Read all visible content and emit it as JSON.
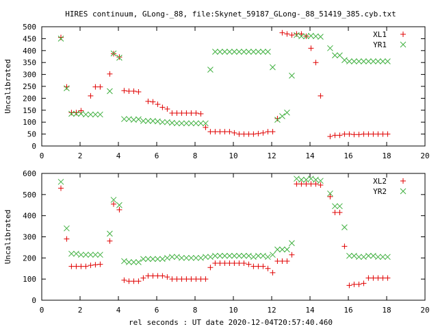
{
  "page": {
    "title": "HIRES continuum, GLong-_88, file:Skynet_59187_GLong-_88_51419_385.cyb.txt",
    "xlabel": "rel seconds : UT date 2020-12-04T20:57:40.460"
  },
  "colors": {
    "red": "#e00000",
    "green": "#40b040",
    "axis": "#000000"
  },
  "chart_data": [
    {
      "type": "scatter",
      "ylabel": "Uncalibrated",
      "xlim": [
        0,
        20
      ],
      "ylim": [
        0,
        500
      ],
      "xticks": [
        0,
        2,
        4,
        6,
        8,
        10,
        12,
        14,
        16,
        18,
        20
      ],
      "yticks": [
        0,
        50,
        100,
        150,
        200,
        250,
        300,
        350,
        400,
        450,
        500
      ],
      "legend_position": "top-right",
      "series": [
        {
          "name": "XL1",
          "marker": "plus",
          "color": "#e00000",
          "x": [
            1.0,
            1.3,
            1.55,
            1.8,
            2.05,
            2.55,
            2.8,
            3.05,
            3.55,
            3.75,
            4.05,
            4.3,
            4.55,
            4.8,
            5.05,
            5.55,
            5.8,
            6.05,
            6.3,
            6.55,
            6.8,
            7.05,
            7.3,
            7.55,
            7.8,
            8.05,
            8.3,
            8.55,
            8.8,
            9.05,
            9.3,
            9.55,
            9.8,
            10.05,
            10.3,
            10.55,
            10.8,
            11.05,
            11.3,
            11.55,
            11.8,
            12.05,
            12.3,
            12.55,
            12.8,
            13.05,
            13.3,
            13.55,
            13.8,
            14.05,
            14.3,
            14.55,
            15.05,
            15.3,
            15.55,
            15.8,
            16.05,
            16.3,
            16.55,
            16.8,
            17.05,
            17.3,
            17.55,
            17.8,
            18.05
          ],
          "y": [
            455,
            248,
            140,
            140,
            148,
            210,
            248,
            248,
            302,
            387,
            373,
            232,
            230,
            230,
            227,
            187,
            185,
            175,
            162,
            155,
            138,
            138,
            138,
            138,
            138,
            138,
            135,
            78,
            60,
            60,
            60,
            60,
            60,
            55,
            50,
            50,
            50,
            50,
            52,
            55,
            60,
            60,
            115,
            475,
            470,
            465,
            470,
            470,
            460,
            410,
            350,
            210,
            40,
            45,
            45,
            50,
            50,
            48,
            48,
            50,
            50,
            50,
            50,
            50,
            50
          ]
        },
        {
          "name": "YR1",
          "marker": "cross",
          "color": "#40b040",
          "x": [
            1.0,
            1.3,
            1.55,
            1.8,
            2.05,
            2.3,
            2.55,
            2.8,
            3.05,
            3.55,
            3.75,
            4.05,
            4.3,
            4.55,
            4.8,
            5.05,
            5.3,
            5.55,
            5.8,
            6.05,
            6.3,
            6.55,
            6.8,
            7.05,
            7.3,
            7.55,
            7.8,
            8.05,
            8.3,
            8.55,
            8.8,
            9.05,
            9.3,
            9.55,
            9.8,
            10.05,
            10.3,
            10.55,
            10.8,
            11.05,
            11.3,
            11.55,
            11.8,
            12.05,
            12.3,
            12.55,
            12.8,
            13.05,
            13.3,
            13.55,
            13.8,
            14.05,
            14.3,
            14.55,
            15.05,
            15.3,
            15.55,
            15.8,
            16.05,
            16.3,
            16.55,
            16.8,
            17.05,
            17.3,
            17.55,
            17.8,
            18.05
          ],
          "y": [
            450,
            242,
            135,
            135,
            135,
            132,
            132,
            132,
            132,
            230,
            388,
            370,
            113,
            113,
            110,
            112,
            105,
            105,
            105,
            103,
            100,
            100,
            97,
            95,
            95,
            95,
            95,
            95,
            95,
            95,
            320,
            395,
            395,
            395,
            395,
            395,
            395,
            395,
            395,
            395,
            395,
            395,
            395,
            330,
            110,
            125,
            140,
            295,
            465,
            460,
            460,
            462,
            460,
            458,
            410,
            380,
            380,
            360,
            355,
            355,
            355,
            355,
            355,
            355,
            355,
            355,
            355
          ]
        }
      ]
    },
    {
      "type": "scatter",
      "ylabel": "Uncalibrated",
      "xlim": [
        0,
        20
      ],
      "ylim": [
        0,
        600
      ],
      "xticks": [
        0,
        2,
        4,
        6,
        8,
        10,
        12,
        14,
        16,
        18,
        20
      ],
      "yticks": [
        0,
        100,
        200,
        300,
        400,
        500,
        600
      ],
      "legend_position": "top-right",
      "series": [
        {
          "name": "XL2",
          "marker": "plus",
          "color": "#e00000",
          "x": [
            1.0,
            1.3,
            1.55,
            1.8,
            2.05,
            2.3,
            2.55,
            2.8,
            3.05,
            3.55,
            3.75,
            4.05,
            4.3,
            4.55,
            4.8,
            5.05,
            5.3,
            5.55,
            5.8,
            6.05,
            6.3,
            6.55,
            6.8,
            7.05,
            7.3,
            7.55,
            7.8,
            8.05,
            8.3,
            8.55,
            8.8,
            9.05,
            9.3,
            9.55,
            9.8,
            10.05,
            10.3,
            10.55,
            10.8,
            11.05,
            11.3,
            11.55,
            11.8,
            12.05,
            12.3,
            12.55,
            12.8,
            13.05,
            13.3,
            13.55,
            13.8,
            14.05,
            14.3,
            14.55,
            15.05,
            15.3,
            15.55,
            15.8,
            16.05,
            16.3,
            16.55,
            16.8,
            17.05,
            17.3,
            17.55,
            17.8,
            18.05
          ],
          "y": [
            530,
            290,
            160,
            160,
            160,
            160,
            165,
            168,
            170,
            280,
            455,
            428,
            95,
            90,
            90,
            90,
            105,
            115,
            115,
            115,
            115,
            110,
            100,
            100,
            100,
            100,
            100,
            100,
            100,
            100,
            155,
            175,
            175,
            175,
            175,
            175,
            175,
            175,
            170,
            160,
            160,
            160,
            150,
            130,
            185,
            185,
            185,
            215,
            550,
            550,
            550,
            550,
            550,
            545,
            490,
            415,
            415,
            255,
            70,
            75,
            75,
            80,
            105,
            105,
            105,
            105,
            105
          ]
        },
        {
          "name": "YR2",
          "marker": "cross",
          "color": "#40b040",
          "x": [
            1.0,
            1.3,
            1.55,
            1.8,
            2.05,
            2.3,
            2.55,
            2.8,
            3.05,
            3.55,
            3.75,
            4.05,
            4.3,
            4.55,
            4.8,
            5.05,
            5.3,
            5.55,
            5.8,
            6.05,
            6.3,
            6.55,
            6.8,
            7.05,
            7.3,
            7.55,
            7.8,
            8.05,
            8.3,
            8.55,
            8.8,
            9.05,
            9.3,
            9.55,
            9.8,
            10.05,
            10.3,
            10.55,
            10.8,
            11.05,
            11.3,
            11.55,
            11.8,
            12.05,
            12.3,
            12.55,
            12.8,
            13.05,
            13.3,
            13.55,
            13.8,
            14.05,
            14.3,
            14.55,
            15.05,
            15.3,
            15.55,
            15.8,
            16.05,
            16.3,
            16.55,
            16.8,
            17.05,
            17.3,
            17.55,
            17.8,
            18.05
          ],
          "y": [
            560,
            340,
            220,
            220,
            215,
            215,
            215,
            215,
            215,
            315,
            475,
            450,
            185,
            180,
            180,
            180,
            195,
            195,
            195,
            195,
            195,
            200,
            205,
            205,
            200,
            200,
            200,
            200,
            200,
            205,
            205,
            210,
            210,
            210,
            210,
            210,
            210,
            210,
            210,
            205,
            210,
            210,
            205,
            215,
            240,
            240,
            240,
            270,
            575,
            570,
            570,
            575,
            570,
            565,
            505,
            445,
            445,
            345,
            210,
            210,
            205,
            205,
            210,
            210,
            205,
            205,
            205
          ]
        }
      ]
    }
  ]
}
